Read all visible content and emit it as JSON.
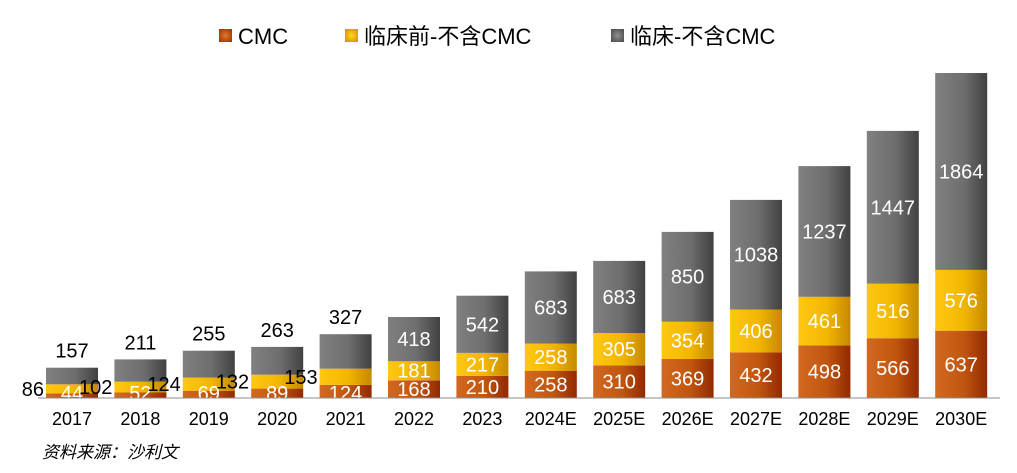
{
  "chart_data": {
    "type": "bar",
    "stacked": true,
    "categories": [
      "2017",
      "2018",
      "2019",
      "2020",
      "2021",
      "2022",
      "2023",
      "2024E",
      "2025E",
      "2026E",
      "2027E",
      "2028E",
      "2029E",
      "2030E"
    ],
    "series": [
      {
        "name": "CMC",
        "color": "#c0560f",
        "values": [
          44,
          52,
          69,
          89,
          124,
          168,
          210,
          258,
          310,
          369,
          432,
          498,
          566,
          637
        ]
      },
      {
        "name": "临床前-不含CMC",
        "color": "#f2b600",
        "values": [
          86,
          102,
          124,
          132,
          153,
          181,
          217,
          258,
          305,
          354,
          406,
          461,
          516,
          576
        ]
      },
      {
        "name": "临床-不含CMC",
        "color": "#6e6e6e",
        "values": [
          157,
          211,
          255,
          263,
          327,
          418,
          542,
          683,
          683,
          850,
          1038,
          1237,
          1447,
          1864
        ]
      }
    ],
    "legend_position": "top",
    "grid": false,
    "y_axis_visible": false
  },
  "source_note": "资料来源：沙利文"
}
